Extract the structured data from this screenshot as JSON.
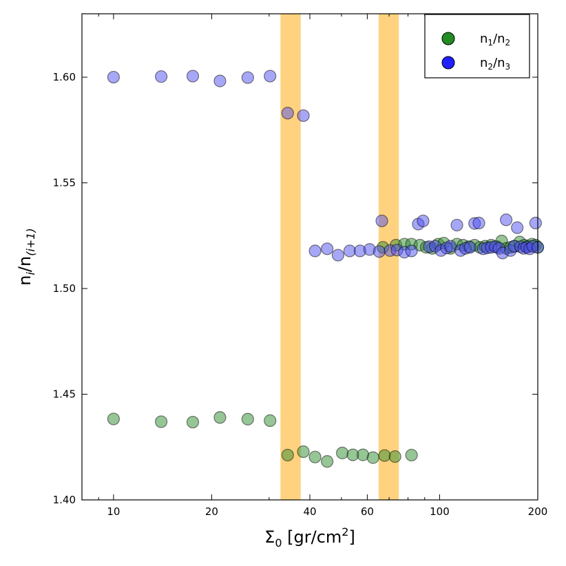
{
  "chart_data": {
    "type": "scatter",
    "xscale": "log",
    "xlim": [
      8,
      200
    ],
    "ylim": [
      1.4,
      1.63
    ],
    "xticks": [
      10,
      20,
      40,
      60,
      100,
      200
    ],
    "yticks": [
      1.4,
      1.45,
      1.5,
      1.55,
      1.6
    ],
    "ytick_labels": [
      "1.40",
      "1.45",
      "1.50",
      "1.55",
      "1.60"
    ],
    "grid": false,
    "legend_position": "top-right",
    "xlabel": {
      "base": "Σ",
      "sub": "0",
      "mid": " [gr/cm",
      "sup": "2",
      "end": "]"
    },
    "ylabel": {
      "base": "n",
      "sub1": "i",
      "mid": "/n",
      "sub2": "(i+1)"
    },
    "bands": [
      {
        "x0": 32.5,
        "x1": 37.5,
        "color": "#ffd27f"
      },
      {
        "x0": 65.0,
        "x1": 75.0,
        "color": "#ffd27f"
      }
    ],
    "series": [
      {
        "legend_base": "n",
        "legend_sub1": "1",
        "legend_mid": "/n",
        "legend_sub2": "2",
        "color": "#2e8b2e",
        "legend_color": "#228b22",
        "points": [
          [
            10,
            1.4383
          ],
          [
            14,
            1.437
          ],
          [
            17.5,
            1.4368
          ],
          [
            21.2,
            1.439
          ],
          [
            25.8,
            1.4382
          ],
          [
            30.2,
            1.4375
          ],
          [
            34.2,
            1.4212
          ],
          [
            38.2,
            1.4228
          ],
          [
            41.5,
            1.4203
          ],
          [
            45.2,
            1.4182
          ],
          [
            50.3,
            1.4222
          ],
          [
            54.2,
            1.4213
          ],
          [
            58.2,
            1.4213
          ],
          [
            62.5,
            1.42
          ],
          [
            67.8,
            1.421
          ],
          [
            73.0,
            1.4205
          ],
          [
            82.0,
            1.4212
          ],
          [
            67.0,
            1.5195
          ],
          [
            73.5,
            1.5205
          ],
          [
            78.0,
            1.521
          ],
          [
            82.0,
            1.521
          ],
          [
            87.0,
            1.5205
          ],
          [
            91.0,
            1.5195
          ],
          [
            95.0,
            1.519
          ],
          [
            99.0,
            1.521
          ],
          [
            103.0,
            1.5215
          ],
          [
            108.0,
            1.519
          ],
          [
            113.0,
            1.521
          ],
          [
            118.0,
            1.5205
          ],
          [
            123.0,
            1.5198
          ],
          [
            128.0,
            1.5205
          ],
          [
            133.0,
            1.5195
          ],
          [
            138.0,
            1.52
          ],
          [
            144.0,
            1.5205
          ],
          [
            150.0,
            1.5198
          ],
          [
            155.0,
            1.5225
          ],
          [
            160.0,
            1.519
          ],
          [
            165.0,
            1.5195
          ],
          [
            170.0,
            1.52
          ],
          [
            176.0,
            1.522
          ],
          [
            182.0,
            1.5205
          ],
          [
            187.0,
            1.52
          ],
          [
            192.0,
            1.521
          ],
          [
            197.0,
            1.5205
          ],
          [
            200.0,
            1.5195
          ]
        ]
      },
      {
        "legend_base": "n",
        "legend_sub1": "2",
        "legend_mid": "/n",
        "legend_sub2": "3",
        "color": "#5050f0",
        "legend_color": "#1f1fff",
        "points": [
          [
            10,
            1.6
          ],
          [
            14,
            1.6003
          ],
          [
            17.5,
            1.6005
          ],
          [
            21.2,
            1.5982
          ],
          [
            25.8,
            1.5998
          ],
          [
            30.2,
            1.6005
          ],
          [
            34.2,
            1.583
          ],
          [
            38.2,
            1.5818
          ],
          [
            41.5,
            1.5178
          ],
          [
            45.2,
            1.5188
          ],
          [
            48.8,
            1.5158
          ],
          [
            53.0,
            1.5178
          ],
          [
            57.0,
            1.5178
          ],
          [
            61.0,
            1.5185
          ],
          [
            65.3,
            1.5175
          ],
          [
            66.5,
            1.532
          ],
          [
            70.5,
            1.518
          ],
          [
            74.0,
            1.5182
          ],
          [
            78.0,
            1.5172
          ],
          [
            82.0,
            1.5178
          ],
          [
            86.0,
            1.5305
          ],
          [
            89.0,
            1.532
          ],
          [
            93.0,
            1.5198
          ],
          [
            97.0,
            1.52
          ],
          [
            101.0,
            1.518
          ],
          [
            105.0,
            1.5192
          ],
          [
            108.0,
            1.52
          ],
          [
            113.0,
            1.53
          ],
          [
            116.0,
            1.518
          ],
          [
            120.0,
            1.519
          ],
          [
            124.0,
            1.5195
          ],
          [
            128.0,
            1.5308
          ],
          [
            132.0,
            1.531
          ],
          [
            136.0,
            1.5188
          ],
          [
            140.0,
            1.5192
          ],
          [
            144.0,
            1.5195
          ],
          [
            148.0,
            1.5198
          ],
          [
            152.0,
            1.519
          ],
          [
            156.0,
            1.5168
          ],
          [
            160.0,
            1.5325
          ],
          [
            165.0,
            1.518
          ],
          [
            169.0,
            1.52
          ],
          [
            173.0,
            1.5288
          ],
          [
            177.0,
            1.5198
          ],
          [
            181.0,
            1.519
          ],
          [
            185.0,
            1.5195
          ],
          [
            189.0,
            1.5188
          ],
          [
            193.0,
            1.52
          ],
          [
            197.0,
            1.531
          ],
          [
            200.0,
            1.5195
          ]
        ]
      }
    ]
  }
}
